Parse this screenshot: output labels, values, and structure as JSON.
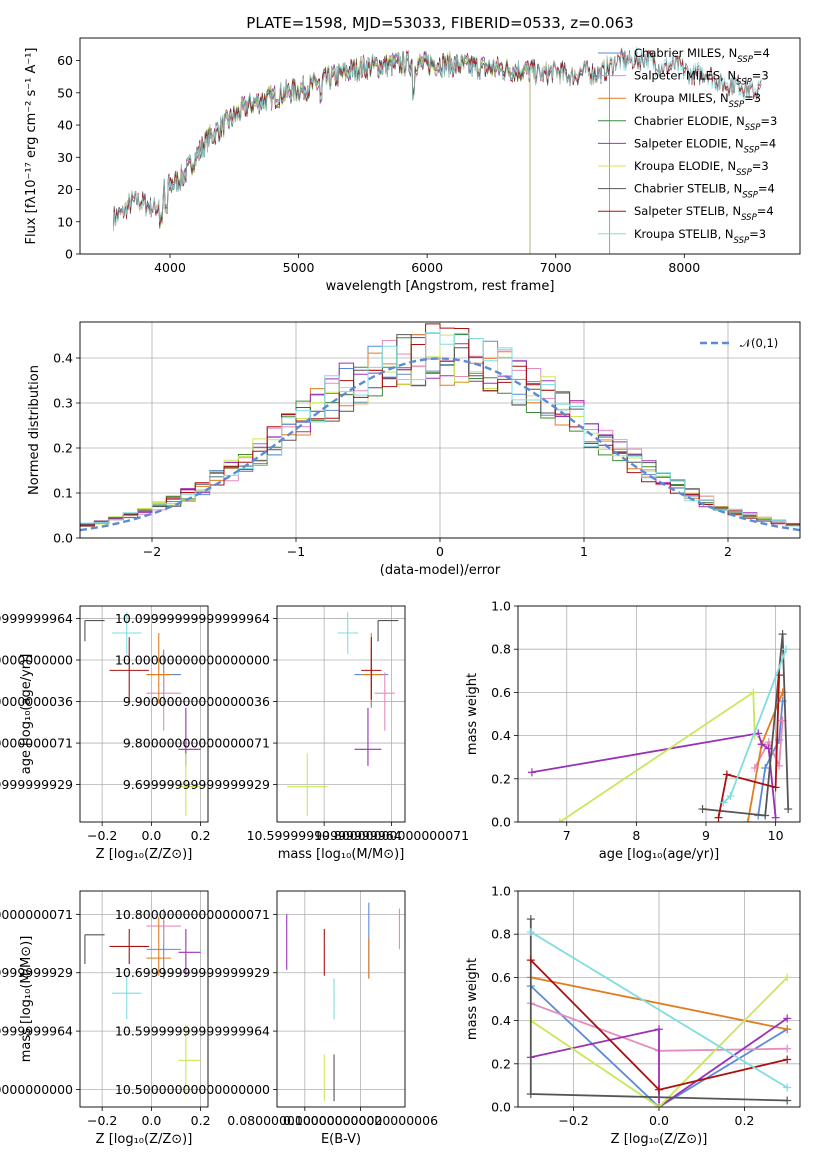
{
  "figure_title": "PLATE=1598, MJD=53033, FIBERID=0533, z=0.063",
  "colors": {
    "Chabrier MILES": "#5b8bd6",
    "Salpeter MILES": "#e58bbd",
    "Kroupa MILES": "#e17d20",
    "Chabrier ELODIE": "#3f8a3a",
    "Salpeter ELODIE": "#9b30b8",
    "Kroupa ELODIE": "#c8e85a",
    "Chabrier STELIB": "#555555",
    "Salpeter STELIB": "#aa1111",
    "Kroupa STELIB": "#7fdde0"
  },
  "chart_data": [
    {
      "id": "spectrum",
      "type": "line",
      "xlabel": "wavelength [Angstrom, rest frame]",
      "ylabel": "Flux [f_λ 10^-17 erg cm^-2 s^-1 A^-1]",
      "xlim": [
        3300,
        8900
      ],
      "ylim": [
        0,
        67
      ],
      "xticks": [
        4000,
        5000,
        6000,
        7000,
        8000
      ],
      "yticks": [
        0,
        10,
        20,
        30,
        40,
        50,
        60
      ],
      "legend_position": "right",
      "legend": [
        "Chabrier MILES, N_SSP=4",
        "Salpeter MILES, N_SSP=3",
        "Kroupa MILES, N_SSP=3",
        "Chabrier ELODIE, N_SSP=3",
        "Salpeter ELODIE, N_SSP=4",
        "Kroupa ELODIE, N_SSP=3",
        "Chabrier STELIB, N_SSP=4",
        "Salpeter STELIB, N_SSP=4",
        "Kroupa STELIB, N_SSP=3"
      ],
      "continuum": {
        "x": [
          3560,
          3700,
          3900,
          3950,
          4100,
          4300,
          4600,
          4900,
          5100,
          5200,
          5500,
          5800,
          6100,
          6400,
          6700,
          7000,
          7300,
          7600,
          7900,
          8200,
          8400,
          8800
        ],
        "y": [
          11,
          16,
          15,
          20,
          24,
          36,
          46,
          50,
          52,
          54,
          58,
          59,
          59,
          58,
          57,
          56,
          56,
          61,
          58,
          55,
          52,
          50
        ]
      },
      "model_ranges": {
        "MILES": [
          3560,
          7420
        ],
        "ELODIE": [
          3920,
          6800
        ],
        "STELIB": [
          3560,
          8600
        ]
      }
    },
    {
      "id": "residual_histogram",
      "type": "bar",
      "xlabel": "(data-model)/error",
      "ylabel": "Normed distribution",
      "xlim": [
        -2.5,
        2.5
      ],
      "ylim": [
        0,
        0.48
      ],
      "xticks": [
        -2,
        -1,
        0,
        1,
        2
      ],
      "yticks": [
        0.0,
        0.1,
        0.2,
        0.3,
        0.4
      ],
      "bins": {
        "start": -2.5,
        "width": 0.1,
        "count": 50
      },
      "reference_curve": {
        "name": "𝒩(0,1)",
        "mean": 0,
        "sigma": 1
      },
      "legend_position": "top-right"
    },
    {
      "id": "age_vs_Z",
      "type": "scatter",
      "xlabel": "Z [log10(Z/Z⊙)]",
      "ylabel": "age [log10(age/yr)]",
      "xlim": [
        -0.29,
        0.23
      ],
      "ylim": [
        9.61,
        10.13
      ],
      "xticks": [
        -0.2,
        0.0,
        0.2
      ],
      "yticks": [
        9.7,
        9.8,
        9.9,
        10.0,
        10.1
      ],
      "points": [
        {
          "model": "Chabrier MILES",
          "x": 0.05,
          "y": 9.965,
          "xerr": [
            0.07,
            0.07
          ],
          "yerr": [
            0.08,
            0.06
          ]
        },
        {
          "model": "Salpeter MILES",
          "x": 0.05,
          "y": 9.92,
          "xerr": [
            0.07,
            0.07
          ],
          "yerr": [
            0.09,
            0.05
          ]
        },
        {
          "model": "Kroupa MILES",
          "x": 0.03,
          "y": 9.965,
          "xerr": [
            0.05,
            0.05
          ],
          "yerr": [
            0.07,
            0.1
          ]
        },
        {
          "model": "Salpeter ELODIE",
          "x": 0.14,
          "y": 9.785,
          "xerr": [
            0.03,
            0.06
          ],
          "yerr": [
            0.04,
            0.1
          ]
        },
        {
          "model": "Kroupa ELODIE",
          "x": 0.14,
          "y": 9.695,
          "xerr": [
            0.03,
            0.06
          ],
          "yerr": [
            0.07,
            0.08
          ]
        },
        {
          "model": "Chabrier STELIB",
          "x": -0.27,
          "y": 10.095,
          "xerr": [
            0.0,
            0.08
          ],
          "yerr": [
            0.05,
            0.0
          ]
        },
        {
          "model": "Salpeter STELIB",
          "x": -0.09,
          "y": 9.975,
          "xerr": [
            0.08,
            0.08
          ],
          "yerr": [
            0.07,
            0.08
          ]
        },
        {
          "model": "Kroupa STELIB",
          "x": -0.1,
          "y": 10.065,
          "xerr": [
            0.06,
            0.06
          ],
          "yerr": [
            0.05,
            0.05
          ]
        }
      ]
    },
    {
      "id": "age_vs_mass",
      "type": "scatter",
      "xlabel": "mass [log10(M/M⊙)]",
      "xlim": [
        10.46,
        10.84
      ],
      "ylim": [
        9.61,
        10.13
      ],
      "xticks": [
        10.6,
        10.8
      ],
      "yticks": [
        9.7,
        9.8,
        9.9,
        10.0,
        10.1
      ],
      "points": [
        {
          "model": "Chabrier MILES",
          "x": 10.74,
          "y": 9.965,
          "xerr": [
            0.05,
            0.05
          ],
          "yerr": [
            0.08,
            0.06
          ]
        },
        {
          "model": "Salpeter MILES",
          "x": 10.78,
          "y": 9.92,
          "xerr": [
            0.03,
            0.03
          ],
          "yerr": [
            0.09,
            0.05
          ]
        },
        {
          "model": "Kroupa MILES",
          "x": 10.74,
          "y": 9.965,
          "xerr": [
            0.03,
            0.03
          ],
          "yerr": [
            0.07,
            0.1
          ]
        },
        {
          "model": "Salpeter ELODIE",
          "x": 10.73,
          "y": 9.785,
          "xerr": [
            0.04,
            0.04
          ],
          "yerr": [
            0.04,
            0.1
          ]
        },
        {
          "model": "Kroupa ELODIE",
          "x": 10.55,
          "y": 9.695,
          "xerr": [
            0.06,
            0.06
          ],
          "yerr": [
            0.07,
            0.08
          ]
        },
        {
          "model": "Chabrier STELIB",
          "x": 10.76,
          "y": 10.095,
          "xerr": [
            0.0,
            0.06
          ],
          "yerr": [
            0.05,
            0.0
          ]
        },
        {
          "model": "Salpeter STELIB",
          "x": 10.74,
          "y": 9.975,
          "xerr": [
            0.03,
            0.03
          ],
          "yerr": [
            0.07,
            0.08
          ]
        },
        {
          "model": "Kroupa STELIB",
          "x": 10.67,
          "y": 10.065,
          "xerr": [
            0.03,
            0.03
          ],
          "yerr": [
            0.05,
            0.05
          ]
        }
      ]
    },
    {
      "id": "weight_vs_age",
      "type": "line",
      "xlabel": "age [log10(age/yr)]",
      "ylabel": "mass weight",
      "xlim": [
        6.3,
        10.35
      ],
      "ylim": [
        0,
        1
      ],
      "xticks": [
        7,
        8,
        9,
        10
      ],
      "yticks": [
        0.0,
        0.2,
        0.4,
        0.6,
        0.8,
        1.0
      ],
      "series": [
        {
          "model": "Chabrier MILES",
          "x": [
            9.75,
            9.85,
            10.05,
            10.1
          ],
          "y": [
            0.03,
            0.25,
            0.38,
            0.56
          ]
        },
        {
          "model": "Salpeter MILES",
          "x": [
            9.7,
            9.9,
            10.05,
            10.1
          ],
          "y": [
            0.25,
            0.37,
            0.26,
            0.47
          ]
        },
        {
          "model": "Kroupa MILES",
          "x": [
            9.6,
            9.8,
            10.1
          ],
          "y": [
            0.0,
            0.36,
            0.6
          ]
        },
        {
          "model": "Salpeter ELODIE",
          "x": [
            6.5,
            9.75,
            9.8,
            9.9,
            10.0
          ],
          "y": [
            0.23,
            0.41,
            0.36,
            0.34,
            0.02
          ]
        },
        {
          "model": "Kroupa ELODIE",
          "x": [
            6.9,
            9.68,
            9.7
          ],
          "y": [
            0.0,
            0.6,
            0.4
          ]
        },
        {
          "model": "Chabrier STELIB",
          "x": [
            8.95,
            9.85,
            10.1,
            10.18
          ],
          "y": [
            0.06,
            0.03,
            0.87,
            0.06
          ]
        },
        {
          "model": "Salpeter STELIB",
          "x": [
            9.18,
            9.3,
            10.0,
            10.05
          ],
          "y": [
            0.02,
            0.22,
            0.16,
            0.68
          ]
        },
        {
          "model": "Kroupa STELIB",
          "x": [
            9.25,
            9.35,
            10.15
          ],
          "y": [
            0.09,
            0.12,
            0.8
          ]
        }
      ]
    },
    {
      "id": "mass_vs_Z",
      "type": "scatter",
      "xlabel": "Z [log10(Z/Z⊙)]",
      "ylabel": "mass [log10(M/M⊙)]",
      "xlim": [
        -0.29,
        0.23
      ],
      "ylim": [
        10.47,
        10.84
      ],
      "xticks": [
        -0.2,
        0.0,
        0.2
      ],
      "yticks": [
        10.5,
        10.6,
        10.7,
        10.8
      ],
      "points": [
        {
          "model": "Chabrier MILES",
          "x": 0.05,
          "y": 10.74,
          "xerr": [
            0.07,
            0.07
          ],
          "yerr": [
            0.05,
            0.05
          ]
        },
        {
          "model": "Salpeter MILES",
          "x": 0.05,
          "y": 10.78,
          "xerr": [
            0.07,
            0.07
          ],
          "yerr": [
            0.03,
            0.03
          ]
        },
        {
          "model": "Kroupa MILES",
          "x": 0.03,
          "y": 10.725,
          "xerr": [
            0.05,
            0.05
          ],
          "yerr": [
            0.03,
            0.07
          ]
        },
        {
          "model": "Salpeter ELODIE",
          "x": 0.14,
          "y": 10.735,
          "xerr": [
            0.03,
            0.06
          ],
          "yerr": [
            0.04,
            0.04
          ]
        },
        {
          "model": "Kroupa ELODIE",
          "x": 0.14,
          "y": 10.55,
          "xerr": [
            0.03,
            0.06
          ],
          "yerr": [
            0.06,
            0.06
          ]
        },
        {
          "model": "Chabrier STELIB",
          "x": -0.27,
          "y": 10.765,
          "xerr": [
            0.0,
            0.08
          ],
          "yerr": [
            0.05,
            0.0
          ]
        },
        {
          "model": "Salpeter STELIB",
          "x": -0.09,
          "y": 10.745,
          "xerr": [
            0.08,
            0.08
          ],
          "yerr": [
            0.03,
            0.03
          ]
        },
        {
          "model": "Kroupa STELIB",
          "x": -0.1,
          "y": 10.665,
          "xerr": [
            0.06,
            0.06
          ],
          "yerr": [
            0.045,
            0.03
          ]
        }
      ]
    },
    {
      "id": "mass_vs_EBV",
      "type": "scatter",
      "xlabel": "E(B-V)",
      "xlim": [
        0.07,
        0.116
      ],
      "ylim": [
        10.47,
        10.84
      ],
      "xticks": [
        0.08,
        0.1
      ],
      "yticks": [
        10.5,
        10.6,
        10.7,
        10.8
      ],
      "points": [
        {
          "model": "Chabrier MILES",
          "x": 0.103,
          "y": 10.74,
          "yerr": [
            0.05,
            0.08
          ]
        },
        {
          "model": "Salpeter MILES",
          "x": 0.114,
          "y": 10.775,
          "yerr": [
            0.035,
            0.035
          ]
        },
        {
          "model": "Kroupa MILES",
          "x": 0.103,
          "y": 10.72,
          "yerr": [
            0.03,
            0.04
          ]
        },
        {
          "model": "Salpeter ELODIE",
          "x": 0.0735,
          "y": 10.755,
          "yerr": [
            0.05,
            0.045
          ]
        },
        {
          "model": "Kroupa ELODIE",
          "x": 0.087,
          "y": 10.52,
          "yerr": [
            0.04,
            0.04
          ]
        },
        {
          "model": "Chabrier STELIB",
          "x": 0.0905,
          "y": 10.52,
          "yerr": [
            0.04,
            0.04
          ]
        },
        {
          "model": "Salpeter STELIB",
          "x": 0.087,
          "y": 10.735,
          "yerr": [
            0.04,
            0.04
          ]
        },
        {
          "model": "Kroupa STELIB",
          "x": 0.0905,
          "y": 10.655,
          "yerr": [
            0.035,
            0.035
          ]
        }
      ]
    },
    {
      "id": "weight_vs_Z",
      "type": "line",
      "xlabel": "Z [log10(Z/Z⊙)]",
      "ylabel": "mass weight",
      "xlim": [
        -0.33,
        0.33
      ],
      "ylim": [
        0,
        1
      ],
      "xticks": [
        -0.2,
        0.0,
        0.2
      ],
      "yticks": [
        0.0,
        0.2,
        0.4,
        0.6,
        0.8,
        1.0
      ],
      "series": [
        {
          "model": "Chabrier MILES",
          "x": [
            -0.3,
            0.0,
            0.3
          ],
          "y": [
            0.56,
            0.0,
            0.36
          ]
        },
        {
          "model": "Salpeter MILES",
          "x": [
            -0.3,
            0.0,
            0.3
          ],
          "y": [
            0.48,
            0.26,
            0.27
          ]
        },
        {
          "model": "Kroupa MILES",
          "x": [
            -0.3,
            0.3
          ],
          "y": [
            0.6,
            0.36
          ]
        },
        {
          "model": "Salpeter ELODIE",
          "x": [
            -0.3,
            0.0,
            0.0,
            0.3
          ],
          "y": [
            0.23,
            0.36,
            0.0,
            0.41
          ]
        },
        {
          "model": "Kroupa ELODIE",
          "x": [
            -0.3,
            0.0,
            0.3
          ],
          "y": [
            0.4,
            0.0,
            0.6
          ]
        },
        {
          "model": "Chabrier STELIB",
          "x": [
            -0.3,
            -0.3,
            0.3
          ],
          "y": [
            0.87,
            0.06,
            0.03
          ]
        },
        {
          "model": "Salpeter STELIB",
          "x": [
            -0.3,
            0.0,
            0.3
          ],
          "y": [
            0.68,
            0.08,
            0.22
          ]
        },
        {
          "model": "Kroupa STELIB",
          "x": [
            -0.3,
            0.3
          ],
          "y": [
            0.81,
            0.09
          ]
        }
      ]
    }
  ]
}
